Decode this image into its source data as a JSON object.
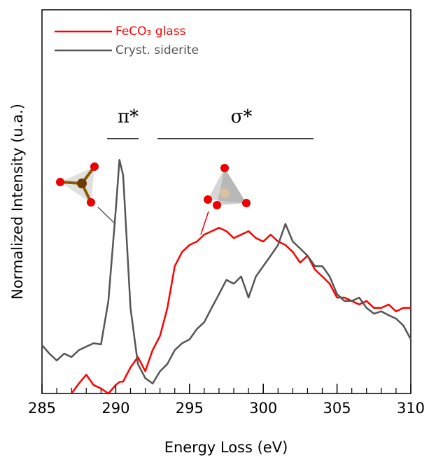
{
  "chart_data": {
    "type": "line",
    "xlabel": "Energy Loss (eV)",
    "ylabel": "Normalized Intensity (u.a.)",
    "annotations": [
      "π*",
      "σ*"
    ],
    "x": [
      285,
      285.5,
      286,
      286.5,
      287,
      287.5,
      288,
      288.5,
      289,
      289.5,
      290,
      290.25,
      290.5,
      291,
      291.5,
      292,
      292.5,
      293,
      293.5,
      294,
      294.5,
      295,
      295.5,
      296,
      296.5,
      297,
      297.5,
      298,
      298.5,
      299,
      299.5,
      300,
      300.5,
      301,
      301.5,
      302,
      302.5,
      303,
      303.5,
      304,
      304.5,
      305,
      305.5,
      306,
      306.5,
      307,
      307.5,
      308,
      308.5,
      309,
      309.5,
      310
    ],
    "series": [
      {
        "name": "FeCO₃ glass",
        "color": "#ff0000",
        "values": [
          null,
          null,
          null,
          null,
          0,
          0.026,
          0.049,
          0.022,
          0.013,
          0,
          0.022,
          0.03,
          0.031,
          0.068,
          0.095,
          0.058,
          0.113,
          0.15,
          0.223,
          0.332,
          0.369,
          0.387,
          0.396,
          0.414,
          0.423,
          0.432,
          0.423,
          0.405,
          0.414,
          0.423,
          0.405,
          0.396,
          0.414,
          0.396,
          0.387,
          0.369,
          0.341,
          0.359,
          0.323,
          0.305,
          0.286,
          0.25,
          0.25,
          0.241,
          0.232,
          0.241,
          0.223,
          0.223,
          0.232,
          0.214,
          0.223,
          0.223
        ]
      },
      {
        "name": "Cryst. siderite",
        "color": "#555555",
        "values": [
          0.126,
          0.104,
          0.086,
          0.104,
          0.095,
          0.113,
          0.122,
          0.131,
          0.128,
          0.241,
          0.478,
          0.609,
          0.569,
          0.223,
          0.077,
          0.04,
          0.026,
          0.058,
          0.077,
          0.113,
          0.131,
          0.141,
          0.168,
          0.186,
          0.223,
          0.259,
          0.296,
          0.286,
          0.305,
          0.25,
          0.305,
          0.332,
          0.359,
          0.387,
          0.442,
          0.396,
          0.378,
          0.359,
          0.332,
          0.332,
          0.305,
          0.259,
          0.241,
          0.241,
          0.25,
          0.223,
          0.208,
          0.214,
          0.204,
          0.195,
          0.177,
          0.141
        ]
      }
    ],
    "xlim": [
      285,
      310
    ],
    "xticks": [
      285,
      290,
      295,
      300,
      305,
      310
    ],
    "xminorticks": [
      286,
      287,
      288,
      289,
      291,
      292,
      293,
      294,
      296,
      297,
      298,
      299,
      301,
      302,
      303,
      304,
      306,
      307,
      308,
      309
    ],
    "ylim": [
      0,
      1
    ],
    "legend": "top-left"
  }
}
